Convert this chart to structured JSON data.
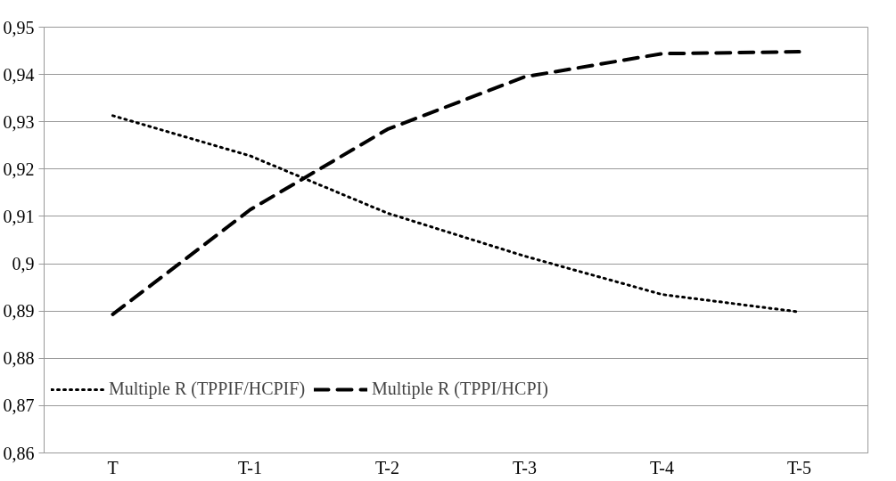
{
  "chart_data": {
    "type": "line",
    "categories": [
      "T",
      "T-1",
      "T-2",
      "T-3",
      "T-4",
      "T-5"
    ],
    "series": [
      {
        "name": "Multiple R (TPPIF/HCPIF)",
        "color": "#000000",
        "line_style": "dotted",
        "values": [
          0.9313,
          0.9228,
          0.9107,
          0.9016,
          0.8935,
          0.8898
        ]
      },
      {
        "name": "Multiple R (TPPI/HCPI)",
        "color": "#000000",
        "line_style": "dashed",
        "values": [
          0.8893,
          0.9114,
          0.9284,
          0.9395,
          0.9444,
          0.9448
        ]
      }
    ],
    "ylim": [
      0.86,
      0.95
    ],
    "yticks": [
      {
        "value": 0.86,
        "label": "0,86"
      },
      {
        "value": 0.87,
        "label": "0,87"
      },
      {
        "value": 0.88,
        "label": "0,88"
      },
      {
        "value": 0.89,
        "label": "0,89"
      },
      {
        "value": 0.9,
        "label": "0,9"
      },
      {
        "value": 0.91,
        "label": "0,91"
      },
      {
        "value": 0.92,
        "label": "0,92"
      },
      {
        "value": 0.93,
        "label": "0,93"
      },
      {
        "value": 0.94,
        "label": "0,94"
      },
      {
        "value": 0.95,
        "label": "0,95"
      }
    ],
    "grid": "y",
    "legend": "bottom",
    "marker": "none"
  }
}
